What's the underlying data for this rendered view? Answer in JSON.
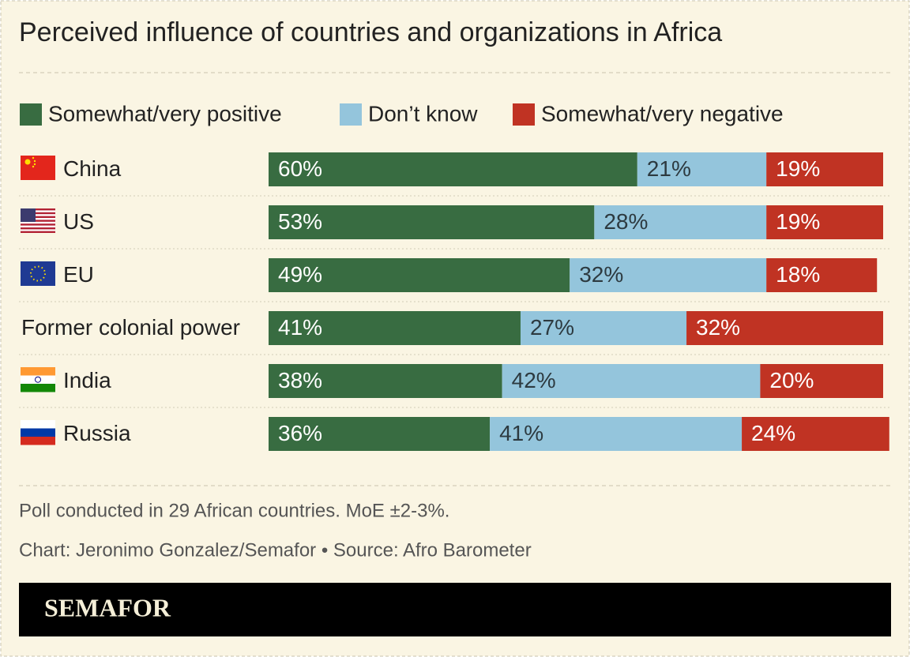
{
  "chart_data": {
    "type": "stacked-bar-horizontal",
    "title": "Perceived influence of countries and organizations in Africa",
    "categories": [
      "China",
      "US",
      "EU",
      "Former colonial power",
      "India",
      "Russia"
    ],
    "series": [
      {
        "name": "Somewhat/very positive",
        "color": "#386c41",
        "values": [
          60,
          53,
          49,
          41,
          38,
          36
        ],
        "value_labels": [
          "60%",
          "53%",
          "49%",
          "41%",
          "38%",
          "36%"
        ]
      },
      {
        "name": "Don’t know",
        "color": "#94c5dc",
        "values": [
          21,
          28,
          32,
          27,
          42,
          41
        ],
        "value_labels": [
          "21%",
          "28%",
          "32%",
          "27%",
          "42%",
          "41%"
        ]
      },
      {
        "name": "Somewhat/very negative",
        "color": "#c03323",
        "values": [
          19,
          19,
          18,
          32,
          20,
          24
        ],
        "value_labels": [
          "19%",
          "19%",
          "18%",
          "32%",
          "20%",
          "24%"
        ]
      }
    ],
    "note": "Poll conducted in 29 African countries. MoE ±2-3%.",
    "credit": "Chart: Jeronimo Gonzalez/Semafor • Source: Afro Barometer",
    "brand": "SEMAFOR"
  }
}
